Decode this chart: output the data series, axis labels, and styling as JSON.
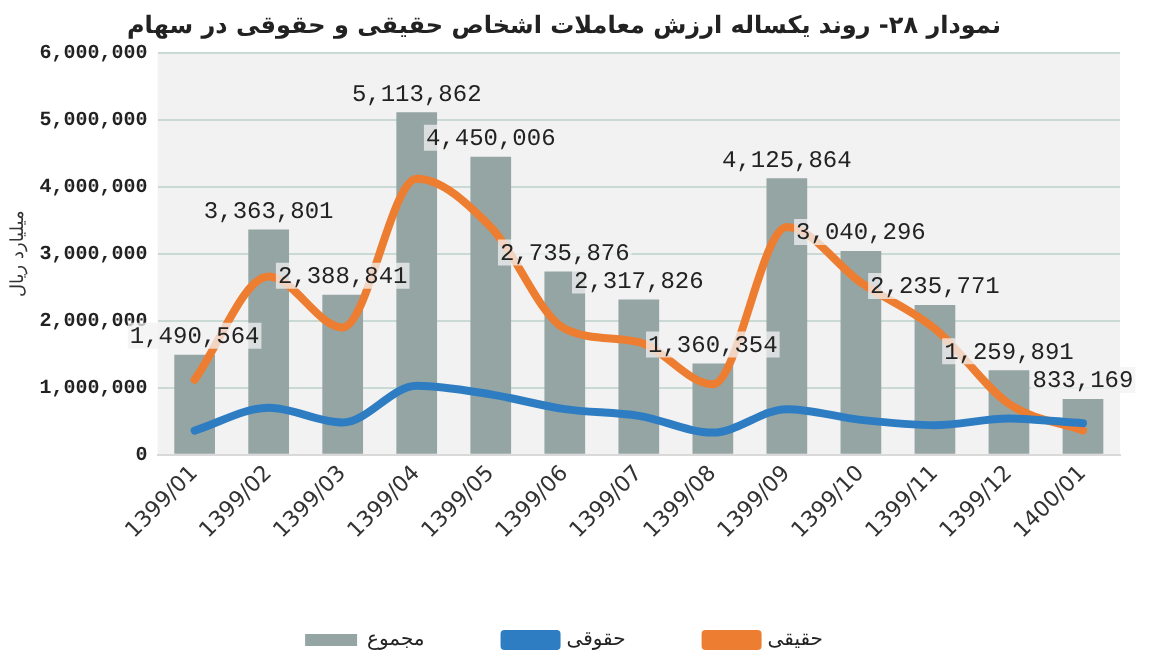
{
  "chart_data": {
    "type": "bar",
    "title": "نمودار ۲۸- روند یکساله ارزش معاملات اشخاص حقیقی و حقوقی در سهام",
    "ylabel": "میلیارد ریال",
    "categories": [
      "1399/01",
      "1399/02",
      "1399/03",
      "1399/04",
      "1399/05",
      "1399/06",
      "1399/07",
      "1399/08",
      "1399/09",
      "1399/10",
      "1399/11",
      "1399/12",
      "1400/01"
    ],
    "series": [
      {
        "name": "مجموع",
        "color": "#95a5a3",
        "values": [
          1490564,
          3363801,
          2388841,
          5113862,
          4450006,
          2735876,
          2317826,
          1360354,
          4125864,
          3040296,
          2235771,
          1259891,
          833169
        ],
        "value_labels": [
          "1,490,564",
          "3,363,801",
          "2,388,841",
          "5,113,862",
          "4,450,006",
          "2,735,876",
          "2,317,826",
          "1,360,354",
          "4,125,864",
          "3,040,296",
          "2,235,771",
          "1,259,891",
          "833,169"
        ]
      },
      {
        "name": "حقوقی",
        "type": "line",
        "color": "#2e7dc2",
        "values": [
          360000,
          700000,
          480000,
          1030000,
          900000,
          680000,
          580000,
          330000,
          680000,
          520000,
          440000,
          540000,
          470000
        ]
      },
      {
        "name": "حقیقی",
        "type": "line",
        "color": "#ed7d31",
        "values": [
          1120000,
          2660000,
          1900000,
          4120000,
          3400000,
          1880000,
          1680000,
          1050000,
          3400000,
          2570000,
          1880000,
          760000,
          360000
        ]
      }
    ],
    "ylim": [
      0,
      6000000
    ],
    "yticks": [
      {
        "value": 0,
        "label": "0"
      },
      {
        "value": 1000000,
        "label": "1,000,000"
      },
      {
        "value": 2000000,
        "label": "2,000,000"
      },
      {
        "value": 3000000,
        "label": "3,000,000"
      },
      {
        "value": 4000000,
        "label": "4,000,000"
      },
      {
        "value": 5000000,
        "label": "5,000,000"
      },
      {
        "value": 6000000,
        "label": "6,000,000"
      }
    ],
    "grid": "y",
    "legend": "bottom",
    "marker": "none",
    "line_style": "solid"
  }
}
